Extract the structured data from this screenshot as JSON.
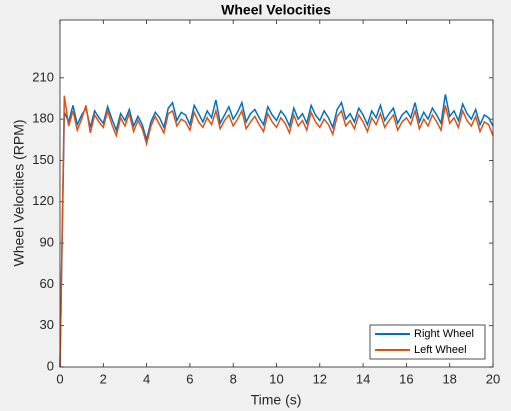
{
  "chart_data": {
    "type": "line",
    "title": "Wheel Velocities",
    "xlabel": "Time (s)",
    "ylabel": "Wheel Velocities (RPM)",
    "x": [
      0,
      0.2,
      0.4,
      0.6,
      0.8,
      1,
      1.2,
      1.4,
      1.6,
      1.8,
      2,
      2.2,
      2.4,
      2.6,
      2.8,
      3,
      3.2,
      3.4,
      3.6,
      3.8,
      4,
      4.2,
      4.4,
      4.6,
      4.8,
      5,
      5.2,
      5.4,
      5.6,
      5.8,
      6,
      6.2,
      6.4,
      6.6,
      6.8,
      7,
      7.2,
      7.4,
      7.6,
      7.8,
      8,
      8.2,
      8.4,
      8.6,
      8.8,
      9,
      9.2,
      9.4,
      9.6,
      9.8,
      10,
      10.2,
      10.4,
      10.6,
      10.8,
      11,
      11.2,
      11.4,
      11.6,
      11.8,
      12,
      12.2,
      12.4,
      12.6,
      12.8,
      13,
      13.2,
      13.4,
      13.6,
      13.8,
      14,
      14.2,
      14.4,
      14.6,
      14.8,
      15,
      15.2,
      15.4,
      15.6,
      15.8,
      16,
      16.2,
      16.4,
      16.6,
      16.8,
      17,
      17.2,
      17.4,
      17.6,
      17.8,
      18,
      18.2,
      18.4,
      18.6,
      18.8,
      19,
      19.2,
      19.4,
      19.6,
      19.8,
      20
    ],
    "series": [
      {
        "name": "Right Wheel",
        "color": "#0072bd",
        "values": [
          0,
          185,
          178,
          190,
          176,
          183,
          188,
          174,
          186,
          181,
          177,
          189,
          180,
          172,
          184,
          179,
          187,
          175,
          182,
          176,
          165,
          178,
          185,
          181,
          174,
          188,
          192,
          179,
          185,
          183,
          176,
          190,
          184,
          178,
          186,
          181,
          194,
          177,
          183,
          189,
          180,
          185,
          192,
          178,
          184,
          187,
          181,
          176,
          189,
          183,
          179,
          186,
          182,
          175,
          188,
          180,
          184,
          177,
          190,
          183,
          179,
          186,
          181,
          174,
          187,
          192,
          180,
          184,
          178,
          188,
          183,
          176,
          186,
          181,
          190,
          179,
          184,
          188,
          177,
          183,
          186,
          181,
          192,
          178,
          185,
          180,
          188,
          183,
          177,
          198,
          182,
          186,
          179,
          191,
          184,
          180,
          187,
          176,
          183,
          181,
          175
        ]
      },
      {
        "name": "Left Wheel",
        "color": "#d95319",
        "values": [
          0,
          197,
          175,
          186,
          172,
          180,
          190,
          170,
          183,
          178,
          174,
          186,
          176,
          168,
          181,
          175,
          184,
          171,
          179,
          173,
          162,
          175,
          182,
          176,
          170,
          184,
          186,
          175,
          180,
          178,
          172,
          185,
          178,
          174,
          181,
          176,
          186,
          173,
          179,
          183,
          175,
          180,
          186,
          173,
          178,
          182,
          176,
          171,
          184,
          178,
          174,
          181,
          177,
          170,
          183,
          175,
          179,
          172,
          185,
          178,
          174,
          180,
          176,
          169,
          182,
          186,
          175,
          179,
          173,
          183,
          178,
          171,
          181,
          176,
          184,
          174,
          179,
          183,
          172,
          178,
          181,
          176,
          186,
          173,
          180,
          175,
          183,
          178,
          172,
          190,
          177,
          181,
          174,
          186,
          179,
          175,
          182,
          171,
          178,
          176,
          168
        ]
      }
    ],
    "xlim": [
      0,
      20
    ],
    "xticks": [
      0,
      2,
      4,
      6,
      8,
      10,
      12,
      14,
      16,
      18,
      20
    ],
    "ylim": [
      0,
      252
    ],
    "yticks": [
      0,
      30,
      60,
      90,
      120,
      150,
      180,
      210
    ],
    "legend": "lower right"
  }
}
